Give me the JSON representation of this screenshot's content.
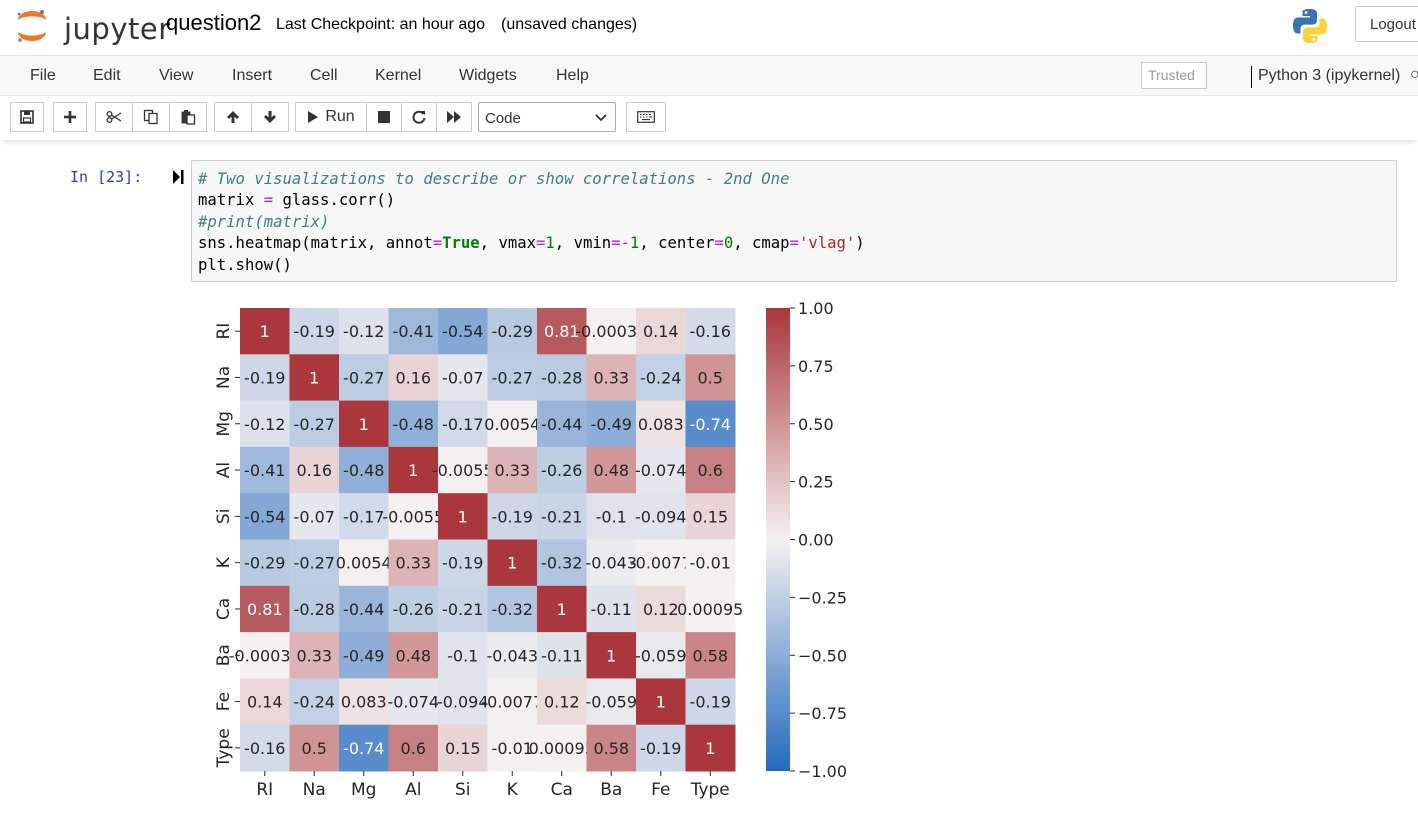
{
  "header": {
    "brand": "jupyter",
    "notebook_name": "question2",
    "checkpoint": "Last Checkpoint: an hour ago",
    "autosave": "(unsaved changes)",
    "logout": "Logout"
  },
  "menubar": {
    "items": [
      "File",
      "Edit",
      "View",
      "Insert",
      "Cell",
      "Kernel",
      "Widgets",
      "Help"
    ],
    "trusted": "Trusted",
    "kernel": "Python 3 (ipykernel)",
    "kernel_indicator": "○"
  },
  "toolbar": {
    "run_label": "Run",
    "cell_type": "Code",
    "icons": [
      "save-icon",
      "plus-icon",
      "cut-icon",
      "copy-icon",
      "paste-icon",
      "arrow-up-icon",
      "arrow-down-icon",
      "play-icon",
      "stop-icon",
      "restart-icon",
      "fast-forward-icon",
      "keyboard-icon"
    ]
  },
  "cell": {
    "prompt": "In [23]:",
    "code_lines": [
      "# Two visualizations to describe or show correlations - 2nd One",
      "matrix = glass.corr()",
      "#print(matrix)",
      "sns.heatmap(matrix, annot=True, vmax=1, vmin=-1, center=0, cmap='vlag')",
      "plt.show()"
    ]
  },
  "colors": {
    "brand_orange": "#f37626",
    "vlag_low": "#2369bd",
    "vlag_mid": "#f5f1f1",
    "vlag_high": "#a9373b",
    "prompt_blue": "#303f9f"
  },
  "chart_data": {
    "type": "heatmap",
    "labels": [
      "RI",
      "Na",
      "Mg",
      "Al",
      "Si",
      "K",
      "Ca",
      "Ba",
      "Fe",
      "Type"
    ],
    "annotations": [
      [
        "1",
        "-0.19",
        "-0.12",
        "-0.41",
        "-0.54",
        "-0.29",
        "0.81",
        "-0.00039",
        "0.14",
        "-0.16"
      ],
      [
        "-0.19",
        "1",
        "-0.27",
        "0.16",
        "-0.07",
        "-0.27",
        "-0.28",
        "0.33",
        "-0.24",
        "0.5"
      ],
      [
        "-0.12",
        "-0.27",
        "1",
        "-0.48",
        "-0.17",
        "0.0054",
        "-0.44",
        "-0.49",
        "0.083",
        "-0.74"
      ],
      [
        "-0.41",
        "0.16",
        "-0.48",
        "1",
        "-0.0055",
        "0.33",
        "-0.26",
        "0.48",
        "-0.074",
        "0.6"
      ],
      [
        "-0.54",
        "-0.07",
        "-0.17",
        "-0.0055",
        "1",
        "-0.19",
        "-0.21",
        "-0.1",
        "-0.094",
        "0.15"
      ],
      [
        "-0.29",
        "-0.27",
        "0.0054",
        "0.33",
        "-0.19",
        "1",
        "-0.32",
        "-0.043",
        "-0.0077",
        "-0.01"
      ],
      [
        "0.81",
        "-0.28",
        "-0.44",
        "-0.26",
        "-0.21",
        "-0.32",
        "1",
        "-0.11",
        "0.12",
        "0.00095"
      ],
      [
        "-0.00039",
        "0.33",
        "-0.49",
        "0.48",
        "-0.1",
        "-0.043",
        "-0.11",
        "1",
        "-0.059",
        "0.58"
      ],
      [
        "0.14",
        "-0.24",
        "0.083",
        "-0.074",
        "-0.094",
        "-0.0077",
        "0.12",
        "-0.059",
        "1",
        "-0.19"
      ],
      [
        "-0.16",
        "0.5",
        "-0.74",
        "0.6",
        "0.15",
        "-0.01",
        "0.00095",
        "0.58",
        "-0.19",
        "1"
      ]
    ],
    "vmin": -1,
    "vmax": 1,
    "center": 0,
    "colormap": "vlag",
    "colorbar_ticks": [
      "1.00",
      "0.75",
      "0.50",
      "0.25",
      "0.00",
      "−0.25",
      "−0.50",
      "−0.75",
      "−1.00"
    ],
    "colorbar_values": [
      1,
      0.75,
      0.5,
      0.25,
      0,
      -0.25,
      -0.5,
      -0.75,
      -1
    ]
  }
}
